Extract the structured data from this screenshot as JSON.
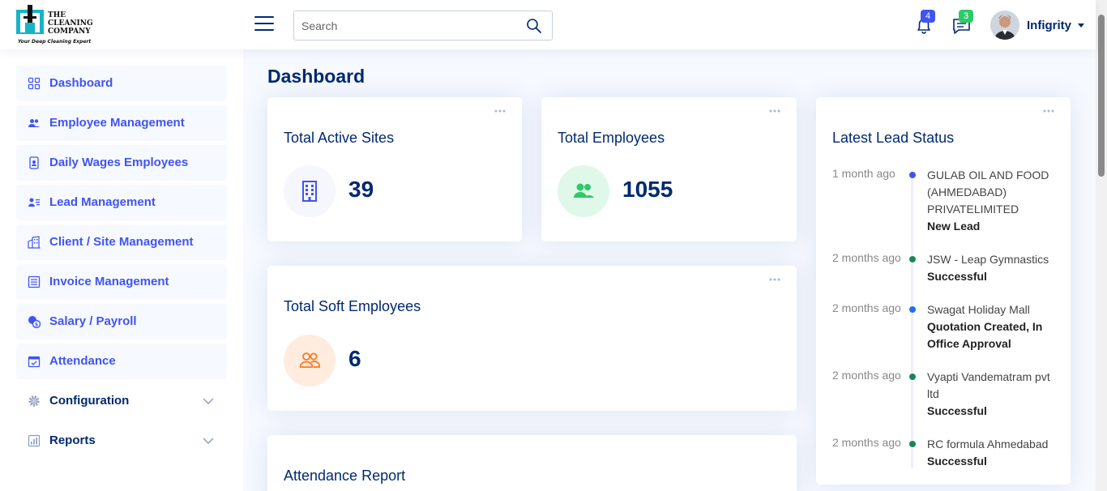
{
  "header": {
    "logo": {
      "line1": "THE",
      "line2": "CLEANING",
      "line3": "COMPANY",
      "tagline": "Your Deep Cleaning Expert"
    },
    "search": {
      "placeholder": "Search",
      "value": ""
    },
    "notifications": {
      "count": "4",
      "color": "#4154f1"
    },
    "messages": {
      "count": "3",
      "color": "#2eca6a"
    },
    "user": {
      "name": "Infigrity"
    }
  },
  "sidebar": {
    "items": [
      {
        "label": "Dashboard",
        "icon": "grid-icon"
      },
      {
        "label": "Employee Management",
        "icon": "people-icon"
      },
      {
        "label": "Daily Wages Employees",
        "icon": "person-badge-icon"
      },
      {
        "label": "Lead Management",
        "icon": "person-lines-icon"
      },
      {
        "label": "Client / Site Management",
        "icon": "buildings-icon"
      },
      {
        "label": "Invoice Management",
        "icon": "document-icon"
      },
      {
        "label": "Salary / Payroll",
        "icon": "coins-icon"
      },
      {
        "label": "Attendance",
        "icon": "calendar-check-icon"
      },
      {
        "label": "Configuration",
        "icon": "gear-icon"
      },
      {
        "label": "Reports",
        "icon": "bar-chart-icon"
      }
    ]
  },
  "main": {
    "title": "Dashboard",
    "cards": {
      "active_sites": {
        "title": "Total Active Sites",
        "value": "39",
        "icon": "building-icon"
      },
      "employees": {
        "title": "Total Employees",
        "value": "1055",
        "icon": "people-fill-icon"
      },
      "soft_employees": {
        "title": "Total Soft Employees",
        "value": "6",
        "icon": "people-outline-icon"
      },
      "attendance": {
        "title": "Attendance Report"
      }
    },
    "leads": {
      "title": "Latest Lead Status",
      "items": [
        {
          "time": "1 month ago",
          "name": "GULAB OIL AND FOOD (AHMEDABAD) PRIVATELIMITED",
          "status": "New Lead",
          "dot": "#4154f1"
        },
        {
          "time": "2 months ago",
          "name": "JSW - Leap Gymnastics",
          "status": "Successful",
          "dot": "#198754"
        },
        {
          "time": "2 months ago",
          "name": "Swagat Holiday Mall",
          "status": "Quotation Created, In Office Approval",
          "dot": "#1e6ff1"
        },
        {
          "time": "2 months ago",
          "name": "Vyapti Vandematram pvt ltd",
          "status": "Successful",
          "dot": "#198754"
        },
        {
          "time": "2 months ago",
          "name": "RC formula Ahmedabad",
          "status": "Successful",
          "dot": "#198754"
        }
      ]
    }
  },
  "colors": {
    "primary": "#4154f1",
    "navy": "#012970",
    "background": "#f6f9ff",
    "sites_icon_bg": "#f6f6fe",
    "employees_icon_bg": "#e0f8e9",
    "soft_icon_bg": "#ffecdf"
  }
}
